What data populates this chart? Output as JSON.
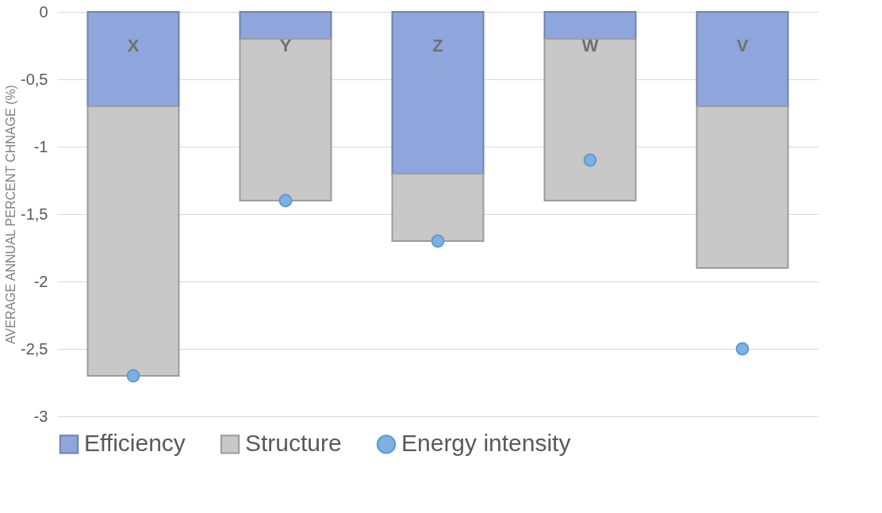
{
  "chart_data": {
    "type": "bar",
    "stacked": true,
    "ylabel": "AVERAGE ANNUAL PERCENT CHNAGE (%)",
    "categories": [
      "X",
      "Y",
      "Z",
      "W",
      "V"
    ],
    "series": [
      {
        "name": "Efficiency",
        "color": "#8fa6dc",
        "values": [
          -0.7,
          -0.2,
          -1.2,
          -0.2,
          -0.7
        ]
      },
      {
        "name": "Structure",
        "color": "#c8c8c8",
        "values": [
          -2.0,
          -1.2,
          -0.5,
          -1.2,
          -1.2
        ]
      },
      {
        "name": "Energy intensity",
        "type": "scatter",
        "color": "#7fb0e0",
        "values": [
          -2.7,
          -1.4,
          -1.7,
          -1.1,
          -2.5
        ]
      }
    ],
    "ylim": [
      -3,
      0
    ],
    "yticks": [
      {
        "value": 0,
        "label": "0"
      },
      {
        "value": -0.5,
        "label": "-0,5"
      },
      {
        "value": -1,
        "label": "-1"
      },
      {
        "value": -1.5,
        "label": "-1,5"
      },
      {
        "value": -2,
        "label": "-2"
      },
      {
        "value": -2.5,
        "label": "-2,5"
      },
      {
        "value": -3,
        "label": "-3"
      }
    ],
    "grid": "y",
    "legend": "bottom",
    "marker": "circle"
  }
}
